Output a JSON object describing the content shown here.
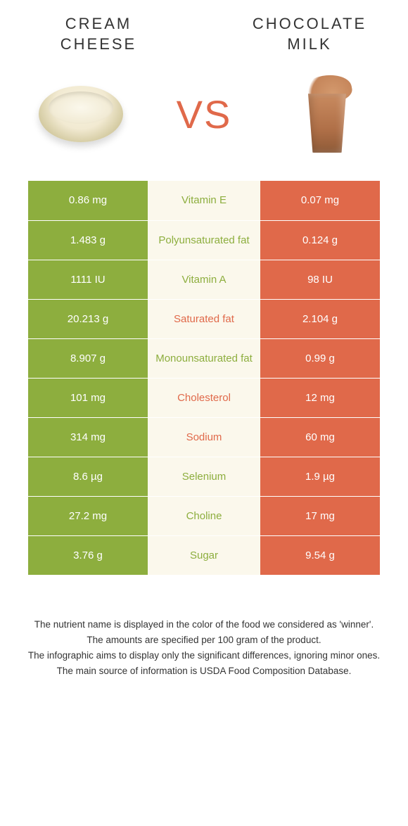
{
  "header": {
    "left_title_l1": "CREAM",
    "left_title_l2": "CHEESE",
    "right_title_l1": "CHOCOLATE",
    "right_title_l2": "MILK"
  },
  "vs": {
    "label": "VS"
  },
  "colors": {
    "green": "#8dae3e",
    "orange": "#e0694a",
    "mid_bg": "#fbf8ec"
  },
  "rows": [
    {
      "nutrient": "Vitamin E",
      "left": "0.86 mg",
      "right": "0.07 mg",
      "winner": "green"
    },
    {
      "nutrient": "Polyunsaturated fat",
      "left": "1.483 g",
      "right": "0.124 g",
      "winner": "green"
    },
    {
      "nutrient": "Vitamin A",
      "left": "1111 IU",
      "right": "98 IU",
      "winner": "green"
    },
    {
      "nutrient": "Saturated fat",
      "left": "20.213 g",
      "right": "2.104 g",
      "winner": "orange"
    },
    {
      "nutrient": "Monounsaturated fat",
      "left": "8.907 g",
      "right": "0.99 g",
      "winner": "green"
    },
    {
      "nutrient": "Cholesterol",
      "left": "101 mg",
      "right": "12 mg",
      "winner": "orange"
    },
    {
      "nutrient": "Sodium",
      "left": "314 mg",
      "right": "60 mg",
      "winner": "orange"
    },
    {
      "nutrient": "Selenium",
      "left": "8.6 µg",
      "right": "1.9 µg",
      "winner": "green"
    },
    {
      "nutrient": "Choline",
      "left": "27.2 mg",
      "right": "17 mg",
      "winner": "green"
    },
    {
      "nutrient": "Sugar",
      "left": "3.76 g",
      "right": "9.54 g",
      "winner": "green"
    }
  ],
  "footer": {
    "l1": "The nutrient name is displayed in the color of the food we considered as 'winner'.",
    "l2": "The amounts are specified per 100 gram of the product.",
    "l3": "The infographic aims to display only the significant differences, ignoring minor ones.",
    "l4": "The main source of information is USDA Food Composition Database."
  }
}
